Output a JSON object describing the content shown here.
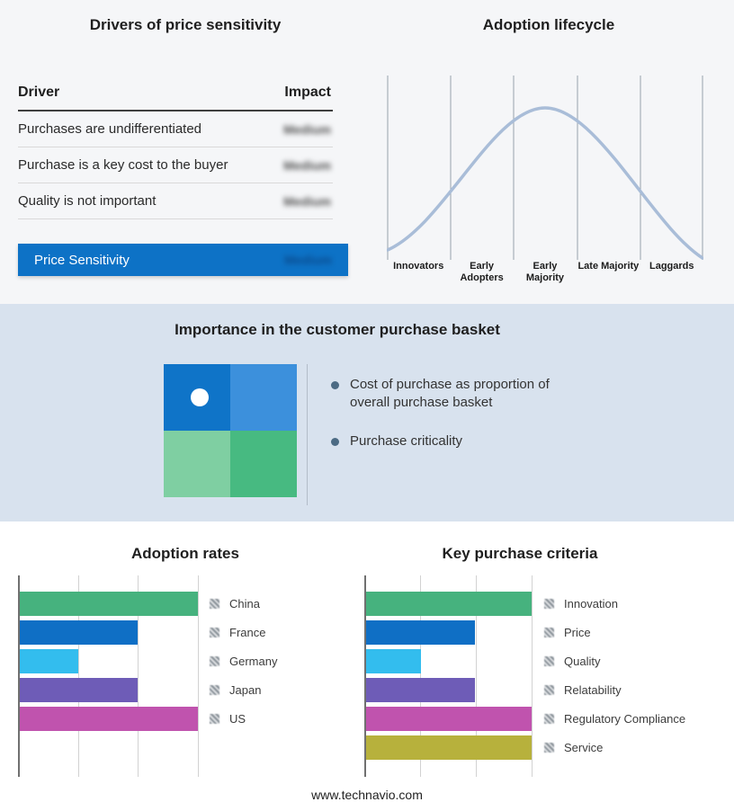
{
  "drivers": {
    "title": "Drivers of price sensitivity",
    "columns": {
      "driver": "Driver",
      "impact": "Impact"
    },
    "rows": [
      {
        "driver": "Purchases are undifferentiated",
        "impact": "Medium"
      },
      {
        "driver": "Purchase is a key cost to the buyer",
        "impact": "Medium"
      },
      {
        "driver": "Quality is not important",
        "impact": "Medium"
      }
    ],
    "highlight_row": {
      "driver": "Price Sensitivity",
      "impact": "Medium"
    }
  },
  "basket": {
    "title": "Importance in the customer purchase basket",
    "bullets": [
      "Cost of purchase as proportion of overall purchase basket",
      "Purchase criticality"
    ]
  },
  "footer": {
    "url": "www.technavio.com"
  },
  "colors": {
    "highlight_blue": "#0d72c6",
    "band_background": "#d8e2ee",
    "curve": "#a9bdd8",
    "quadrant": {
      "top_left": "#0f74c8",
      "top_right": "#3c90dc",
      "bottom_left": "#7fcfa2",
      "bottom_right": "#47ba81"
    },
    "series": {
      "green": "#46b27e",
      "blue": "#0f6fc5",
      "cyan": "#33bdee",
      "purple": "#6e5cb7",
      "magenta": "#c053ae",
      "olive": "#b7b13c"
    }
  },
  "chart_data": [
    {
      "type": "line",
      "subtype": "bell-curve",
      "title": "Adoption lifecycle",
      "categories": [
        "Innovators",
        "Early Adopters",
        "Early Majority",
        "Late Majority",
        "Laggards"
      ],
      "values": [
        5,
        45,
        100,
        45,
        5
      ],
      "xlabel": "",
      "ylabel": "",
      "grid": "vertical-only",
      "legend": "none"
    },
    {
      "type": "bar",
      "title": "Adoption rates",
      "orientation": "horizontal",
      "categories": [
        "China",
        "France",
        "Germany",
        "Japan",
        "US"
      ],
      "values": [
        100,
        66,
        33,
        66,
        100
      ],
      "value_unit": "relative-percent-of-axis",
      "xlim": [
        0,
        100
      ],
      "grid": "vertical-only",
      "legend_position": "right"
    },
    {
      "type": "bar",
      "title": "Key purchase criteria",
      "orientation": "horizontal",
      "categories": [
        "Innovation",
        "Price",
        "Quality",
        "Relatability",
        "Regulatory Compliance",
        "Service"
      ],
      "values": [
        100,
        66,
        33,
        66,
        100,
        100
      ],
      "value_unit": "relative-percent-of-axis",
      "xlim": [
        0,
        100
      ],
      "grid": "vertical-only",
      "legend_position": "right"
    }
  ]
}
